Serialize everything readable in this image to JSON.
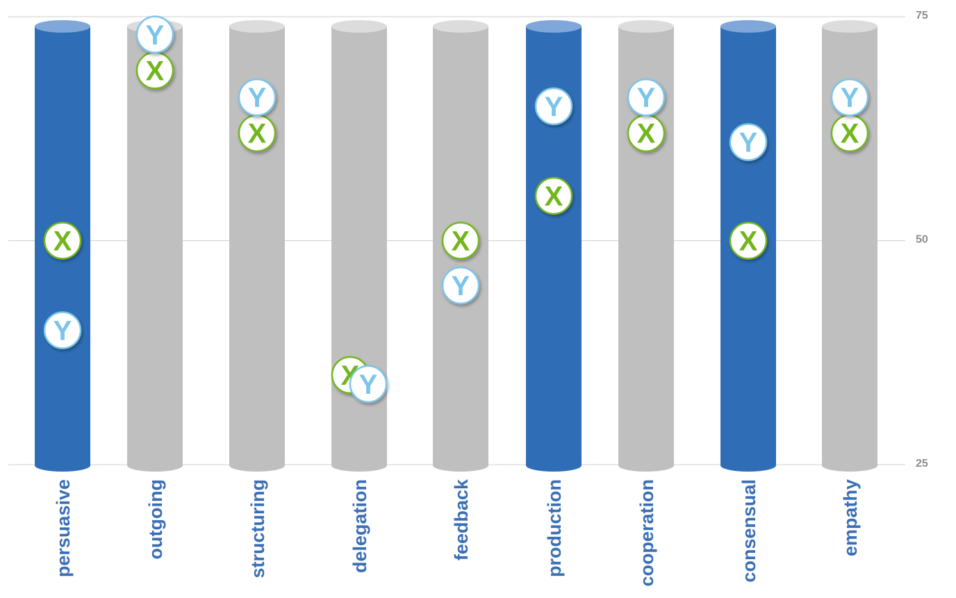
{
  "chart_data": {
    "type": "bar",
    "categories": [
      "persuasive",
      "outgoing",
      "structuring",
      "delegation",
      "feedback",
      "production",
      "cooperation",
      "consensual",
      "empathy"
    ],
    "highlighted": [
      "persuasive",
      "production",
      "consensual"
    ],
    "ylim": [
      25,
      75
    ],
    "yticks": [
      25,
      50,
      75
    ],
    "ytick_labels": [
      "25",
      "50",
      "75"
    ],
    "grid": true,
    "series": [
      {
        "name": "X",
        "marker_label": "X",
        "values": [
          50,
          69,
          62,
          35,
          50,
          55,
          62,
          50,
          62
        ]
      },
      {
        "name": "Y",
        "marker_label": "Y",
        "values": [
          40,
          73,
          66,
          34,
          45,
          65,
          66,
          61,
          66
        ]
      }
    ],
    "colors": {
      "bar_highlight": "#2f6eb6",
      "bar_highlight_top": "#7fa7d9",
      "bar_default": "#bfbfbf",
      "bar_default_top": "#dcdcdc",
      "marker_x": "#72b61c",
      "marker_y": "#7cc4ea",
      "label": "#3a6fb5",
      "grid": "#cfcfcf",
      "tick": "#8c8c8c"
    }
  }
}
